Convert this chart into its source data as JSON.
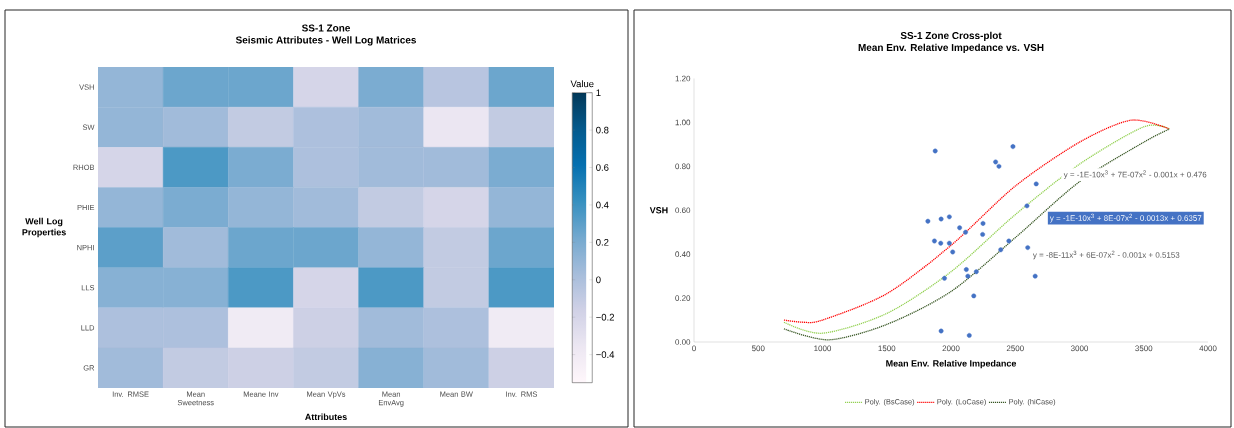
{
  "chart_data": [
    {
      "type": "heatmap",
      "title": "SS-1 Zone",
      "subtitle": "Seismic Attributes - Well Log Matrices",
      "xlabel": "Attributes",
      "ylabel": "Well Log Properties",
      "clabel": "Value",
      "categories": [
        "Inv. RMSE",
        "Mean Sweetness",
        "Meane Inv",
        "Mean VpVs",
        "Mean EnvAvg",
        "Mean BW",
        "Inv. RMS"
      ],
      "y_categories": [
        "VSH",
        "SW",
        "RHOB",
        "PHIE",
        "NPHI",
        "LLS",
        "LLD",
        "GR"
      ],
      "cells": [
        [
          0.1,
          0.25,
          0.25,
          -0.2,
          0.2,
          -0.05,
          0.25
        ],
        [
          0.1,
          0.05,
          -0.1,
          0.0,
          0.05,
          -0.35,
          -0.1
        ],
        [
          -0.2,
          0.35,
          0.2,
          0.0,
          0.05,
          0.05,
          0.2
        ],
        [
          0.1,
          0.2,
          0.1,
          0.05,
          -0.1,
          -0.2,
          0.1
        ],
        [
          0.3,
          0.05,
          0.25,
          0.25,
          0.1,
          -0.1,
          0.25
        ],
        [
          0.15,
          0.15,
          0.35,
          -0.2,
          0.35,
          -0.1,
          0.35
        ],
        [
          0.0,
          0.0,
          -0.4,
          -0.15,
          0.05,
          0.0,
          -0.4
        ],
        [
          0.05,
          -0.1,
          -0.15,
          -0.1,
          0.15,
          0.05,
          -0.15
        ]
      ],
      "clim": [
        -0.55,
        1
      ],
      "cticks": [
        {
          "value": -0.4,
          "label": "−0.4"
        },
        {
          "value": -0.2,
          "label": "−0.2"
        },
        0,
        0.2,
        0.4,
        0.6,
        0.8,
        1
      ]
    },
    {
      "type": "scatter",
      "title": "SS-1 Zone Cross-plot",
      "subtitle": "Mean Env. Relative Impedance vs. VSH",
      "xlabel": "Mean Env. Relative Impedance",
      "ylabel": "VSH",
      "xlim": [
        0,
        4000
      ],
      "xticks": [
        0,
        500,
        1000,
        1500,
        2000,
        2500,
        3000,
        3500,
        4000
      ],
      "ylim": [
        0,
        1.2
      ],
      "yticks": [
        {
          "value": 0,
          "label": "0.00"
        },
        {
          "value": 0.2,
          "label": "0.20"
        },
        {
          "value": 0.4,
          "label": "0.40"
        },
        {
          "value": 0.6,
          "label": "0.60"
        },
        {
          "value": 0.8,
          "label": "0.80"
        },
        {
          "value": 1.0,
          "label": "1.00"
        },
        {
          "value": 1.2,
          "label": "1.20"
        }
      ],
      "legend": "bottom",
      "series": [
        {
          "type": "scatter",
          "color": "#4472c4",
          "marker": "circle",
          "x": [
            1877,
            2482,
            2347,
            2373,
            2663,
            2591,
            1820,
            1923,
            1987,
            2067,
            2113,
            2249,
            2246,
            1871,
            1920,
            1987,
            2013,
            2450,
            2387,
            2597,
            2119,
            2131,
            2197,
            1949,
            2655,
            2177,
            1923,
            2142
          ],
          "values": [
            0.87,
            0.89,
            0.82,
            0.8,
            0.72,
            0.62,
            0.55,
            0.56,
            0.57,
            0.52,
            0.5,
            0.54,
            0.49,
            0.46,
            0.45,
            0.45,
            0.41,
            0.46,
            0.42,
            0.43,
            0.33,
            0.3,
            0.32,
            0.29,
            0.3,
            0.21,
            0.05,
            0.03
          ]
        },
        {
          "type": "line",
          "name": "Poly. (BsCase)",
          "color": "#92d050",
          "line_style": "dotted",
          "x": [
            700,
            1000,
            1500,
            2000,
            2500,
            3000,
            3500,
            3700
          ],
          "values": [
            0.09,
            0.04,
            0.13,
            0.32,
            0.58,
            0.81,
            0.98,
            0.97
          ]
        },
        {
          "type": "line",
          "name": "Poly. (LoCase)",
          "color": "#ff0000",
          "line_style": "dotted",
          "x": [
            700,
            850,
            1000,
            1500,
            2000,
            2500,
            3000,
            3400,
            3700
          ],
          "values": [
            0.1,
            0.09,
            0.1,
            0.22,
            0.44,
            0.71,
            0.91,
            1.01,
            0.97
          ]
        },
        {
          "type": "line",
          "name": "Poly. (hiCase)",
          "color": "#375623",
          "line_style": "dotted",
          "x": [
            700,
            1050,
            1500,
            2000,
            2500,
            3000,
            3500,
            3700
          ],
          "values": [
            0.06,
            0.01,
            0.08,
            0.23,
            0.475,
            0.73,
            0.91,
            0.97
          ]
        }
      ],
      "annotations": [
        "y = -1E-10x$^{3}$ + 7E-07x$^{2}$ - 0.001x + 0.476",
        "y = -1E-10x$^{3}$ + 8E-07x$^{2}$ - 0.0013x + 0.6357",
        "y = -8E-11x$^{3}$ + 6E-07x$^{2}$ - 0.001x + 0.5153"
      ]
    }
  ]
}
